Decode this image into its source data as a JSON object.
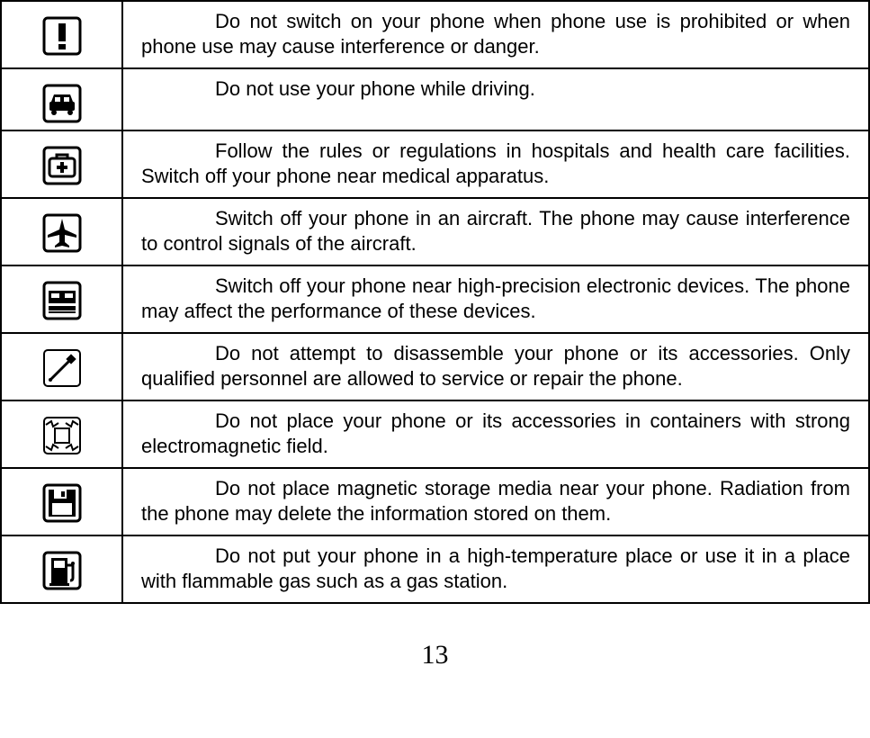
{
  "rows": [
    {
      "icon": "warning",
      "text": "Do not switch on your phone when phone use is prohibited or when phone use may cause interference or danger."
    },
    {
      "icon": "car",
      "text": "Do not use your phone while driving."
    },
    {
      "icon": "medical",
      "text": "Follow the rules or regulations in hospitals and health care facilities. Switch off your phone near medical apparatus."
    },
    {
      "icon": "airplane",
      "text": "Switch off your phone in an aircraft. The phone may cause interference to control signals of the aircraft."
    },
    {
      "icon": "electronics",
      "text": "Switch off your phone near high-precision electronic devices. The phone may affect the performance of these devices."
    },
    {
      "icon": "screwdriver",
      "text": "Do not attempt to disassemble your phone or its accessories. Only qualified personnel are allowed to service or repair the phone."
    },
    {
      "icon": "emf",
      "text": "Do not place your phone or its accessories in containers with strong electromagnetic field."
    },
    {
      "icon": "floppy",
      "text": "Do not place magnetic storage media near your phone. Radiation from the phone may delete the information stored on them."
    },
    {
      "icon": "gaspump",
      "text": "Do not put your phone in a high-temperature place or use it in a place with flammable gas such as a gas station."
    }
  ],
  "page_number": "13",
  "style": {
    "font_size_body": 22,
    "font_size_pagenum": 30,
    "text_color": "#000000",
    "border_color": "#000000",
    "background": "#ffffff",
    "icon_cell_width": 135,
    "row_height_min": 78
  }
}
